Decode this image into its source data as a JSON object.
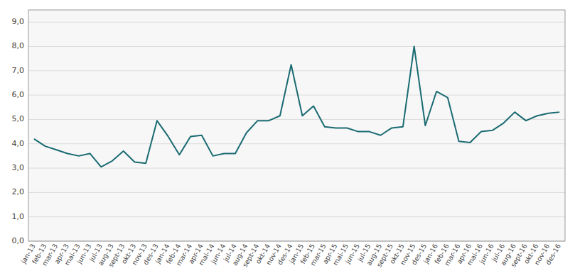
{
  "chart_data": {
    "type": "line",
    "categories": [
      "jan-13",
      "feb-13",
      "mar-13",
      "apr-13",
      "mai-13",
      "jun-13",
      "jul-13",
      "aug-13",
      "sept-13",
      "okt-13",
      "nov-13",
      "des-13",
      "jan-14",
      "feb-14",
      "mar-14",
      "apr-14",
      "mai-14",
      "jun-14",
      "jul-14",
      "aug-14",
      "sept-14",
      "okt-14",
      "nov-14",
      "des-14",
      "jan-15",
      "feb-15",
      "mar-15",
      "apr-15",
      "mai-15",
      "jun-15",
      "jul-15",
      "aug-15",
      "sept-15",
      "okt-15",
      "nov-15",
      "des-15",
      "jan-16",
      "feb-16",
      "mar-16",
      "apr-16",
      "mai-16",
      "jun-16",
      "jul-16",
      "aug-16",
      "sept-16",
      "okt-16",
      "nov-16",
      "des-16"
    ],
    "values": [
      4.2,
      3.9,
      3.75,
      3.6,
      3.5,
      3.6,
      3.05,
      3.3,
      3.7,
      3.25,
      3.2,
      4.95,
      4.3,
      3.55,
      4.3,
      4.35,
      3.5,
      3.6,
      3.6,
      4.45,
      4.95,
      4.95,
      5.15,
      7.25,
      5.15,
      5.55,
      4.7,
      4.65,
      4.65,
      4.5,
      4.5,
      4.35,
      4.65,
      4.7,
      8.0,
      4.75,
      6.15,
      5.9,
      4.1,
      4.05,
      4.5,
      4.55,
      4.85,
      5.3,
      4.95,
      5.15,
      5.25,
      5.3
    ],
    "color": "#1a6b72",
    "ylim": [
      0.0,
      9.5
    ],
    "yticks": [
      {
        "value": 0.0,
        "label": "0,0"
      },
      {
        "value": 1.0,
        "label": "1,0"
      },
      {
        "value": 2.0,
        "label": "2,0"
      },
      {
        "value": 3.0,
        "label": "3,0"
      },
      {
        "value": 4.0,
        "label": "4,0"
      },
      {
        "value": 5.0,
        "label": "5,0"
      },
      {
        "value": 6.0,
        "label": "6,0"
      },
      {
        "value": 7.0,
        "label": "7,0"
      },
      {
        "value": 8.0,
        "label": "8,0"
      },
      {
        "value": 9.0,
        "label": "9,0"
      }
    ],
    "grid": true
  }
}
